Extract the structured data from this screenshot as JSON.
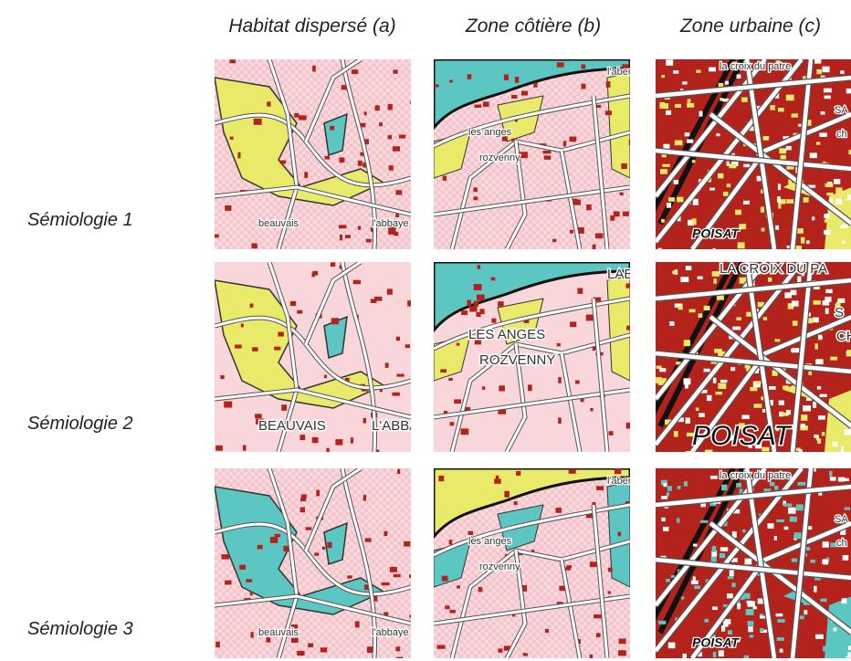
{
  "columns": [
    "Habitat dispersé (a)",
    "Zone côtière (b)",
    "Zone urbaine (c)"
  ],
  "rows": [
    {
      "label": "Sémiologie 1",
      "tiles": [
        [
          "beauvais",
          "l'abbaye"
        ],
        [
          "les anges",
          "rozvenny",
          "l'aber"
        ],
        [
          "la croix du patre",
          "POISAT",
          "SA",
          "ch"
        ]
      ]
    },
    {
      "label": "Sémiologie 2",
      "tiles": [
        [
          "BEAUVAIS",
          "L'ABBA"
        ],
        [
          "LES ANGES",
          "ROZVENNY",
          "LAB"
        ],
        [
          "LA CROIX DU PA",
          "POISAT",
          "S",
          "CH"
        ]
      ]
    },
    {
      "label": "Sémiologie 3",
      "tiles": [
        [
          "beauvais",
          "l'abbaye"
        ],
        [
          "les anges",
          "rozvenny",
          "l'aber"
        ],
        [
          "la croix du patre",
          "POISAT",
          "SA",
          "ch"
        ]
      ]
    }
  ]
}
